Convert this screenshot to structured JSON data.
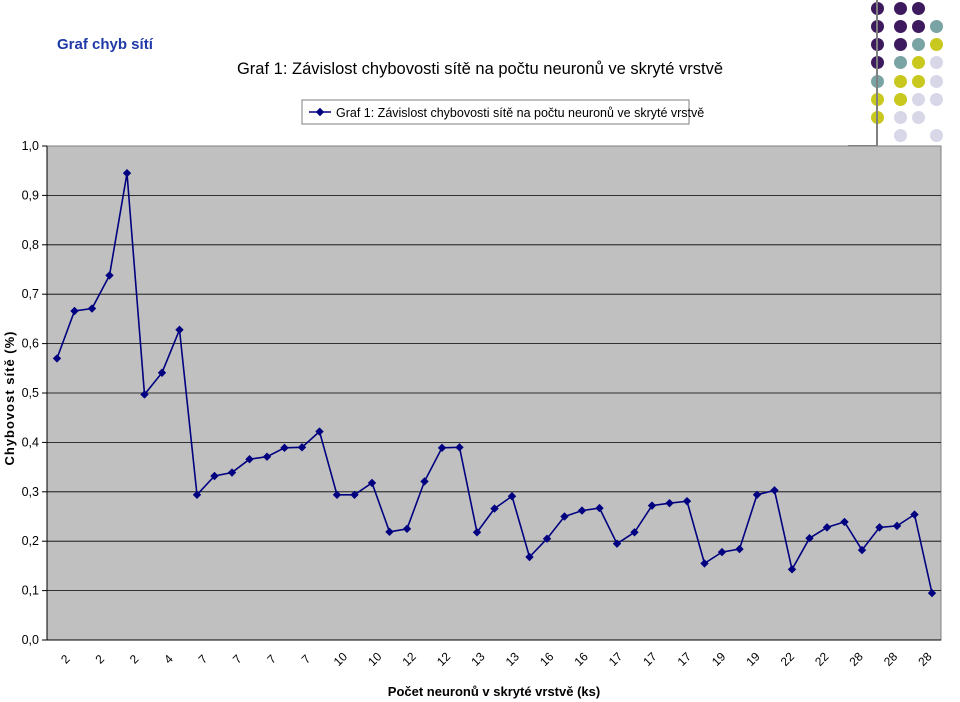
{
  "slide": {
    "title": "Graf chyb sítí"
  },
  "colors": {
    "plot_bg": "#c0c0c0",
    "line": "#000080",
    "decor_purple": "#3d1a5e",
    "decor_teal": "#7aa3a3",
    "decor_olive": "#c8c81e",
    "decor_lavender": "#d7d7e8"
  },
  "chart_data": {
    "type": "line",
    "title": "Graf 1: Závislost chybovosti sítě na počtu neuronů ve skryté vrstvě",
    "xlabel": "Počet neuronů v skryté vrstvě (ks)",
    "ylabel": "Chybovost sítě (%)",
    "ylim": [
      0,
      1
    ],
    "yticks": [
      "0,0",
      "0,1",
      "0,2",
      "0,3",
      "0,4",
      "0,5",
      "0,6",
      "0,7",
      "0,8",
      "0,9",
      "1,0"
    ],
    "grid": true,
    "legend_position": "top-center",
    "x_tick_labels": [
      "2",
      "2",
      "2",
      "4",
      "7",
      "7",
      "7",
      "7",
      "10",
      "10",
      "12",
      "12",
      "13",
      "13",
      "16",
      "16",
      "17",
      "17",
      "17",
      "19",
      "19",
      "22",
      "22",
      "28",
      "28",
      "28"
    ],
    "series": [
      {
        "name": "Graf 1: Závislost chybovosti sítě na počtu neuronů ve skryté vrstvě",
        "values": [
          0.57,
          0.666,
          0.671,
          0.738,
          0.945,
          0.497,
          0.541,
          0.628,
          0.294,
          0.332,
          0.339,
          0.366,
          0.371,
          0.389,
          0.39,
          0.422,
          0.294,
          0.294,
          0.318,
          0.219,
          0.225,
          0.321,
          0.389,
          0.39,
          0.218,
          0.266,
          0.291,
          0.168,
          0.205,
          0.25,
          0.262,
          0.267,
          0.195,
          0.218,
          0.272,
          0.277,
          0.281,
          0.155,
          0.178,
          0.184,
          0.294,
          0.303,
          0.143,
          0.206,
          0.228,
          0.239,
          0.182,
          0.228,
          0.231,
          0.254,
          0.095
        ]
      }
    ]
  },
  "decor": {
    "dots": [
      [
        "purple",
        "purple",
        "purple",
        null
      ],
      [
        "purple",
        "purple",
        "purple",
        "teal"
      ],
      [
        "purple",
        "purple",
        "teal",
        "olive"
      ],
      [
        "purple",
        "teal",
        "olive",
        "lavender"
      ],
      [
        "teal",
        "olive",
        "olive",
        "lavender"
      ],
      [
        "olive",
        "olive",
        "lavender",
        "lavender"
      ],
      [
        "olive",
        "lavender",
        "lavender",
        null
      ],
      [
        null,
        "lavender",
        null,
        "lavender"
      ]
    ]
  }
}
